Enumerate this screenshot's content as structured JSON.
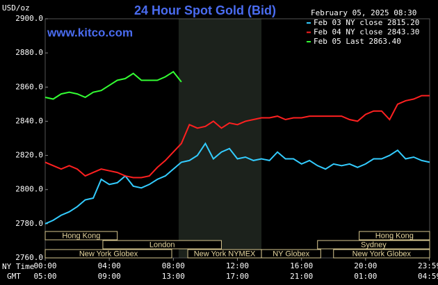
{
  "chart_data": {
    "type": "line",
    "title": "24 Hour Spot Gold (Bid)",
    "website": "www.kitco.com",
    "y_label": "USD/oz",
    "timestamp": "February 05, 2025 08:30",
    "x_axis_names": [
      "NY Time",
      "GMT"
    ],
    "x": [
      0,
      0.5,
      1,
      1.5,
      2,
      2.5,
      3,
      3.5,
      4,
      4.5,
      5,
      5.5,
      6,
      6.5,
      7,
      7.5,
      8,
      8.5,
      9,
      9.5,
      10,
      10.5,
      11,
      11.5,
      12,
      12.5,
      13,
      13.5,
      14,
      14.5,
      15,
      15.5,
      16,
      16.5,
      17,
      17.5,
      18,
      18.5,
      19,
      19.5,
      20,
      20.5,
      21,
      21.5,
      22,
      22.5,
      23,
      23.5,
      24
    ],
    "xlim": [
      0,
      24
    ],
    "xticks": [
      {
        "value": 0,
        "label": "00:00"
      },
      {
        "value": 4,
        "label": "04:00"
      },
      {
        "value": 8,
        "label": "08:00"
      },
      {
        "value": 12,
        "label": "12:00"
      },
      {
        "value": 16,
        "label": "16:00"
      },
      {
        "value": 20,
        "label": "20:00"
      },
      {
        "value": 23.98,
        "label": "23:59"
      }
    ],
    "gmt_tick_labels": [
      "05:00",
      "09:00",
      "13:00",
      "17:00",
      "21:00",
      "01:00",
      "04:59"
    ],
    "ylim": [
      2760,
      2900
    ],
    "yticks": [
      {
        "value": 2760,
        "label": "2760.0"
      },
      {
        "value": 2780,
        "label": "2780.0"
      },
      {
        "value": 2800,
        "label": "2800.0"
      },
      {
        "value": 2820,
        "label": "2820.0"
      },
      {
        "value": 2840,
        "label": "2840.0"
      },
      {
        "value": 2860,
        "label": "2860.0"
      },
      {
        "value": 2880,
        "label": "2880.0"
      },
      {
        "value": 2900,
        "label": "2900.0"
      }
    ],
    "sessions": [
      [
        "Hong Kong",
        "Hong Kong"
      ],
      [
        "London",
        "Sydney"
      ],
      [
        "New York Globex",
        "New York NYMEX",
        "NY Globex",
        "New York Globex"
      ]
    ],
    "series": [
      {
        "name": "Feb 03 NY close 2815.20",
        "color": "#33ccff",
        "values": [
          2780,
          2782,
          2785,
          2787,
          2790,
          2794,
          2795,
          2806,
          2803,
          2804,
          2808,
          2802,
          2801,
          2803,
          2806,
          2808,
          2812,
          2816,
          2817,
          2820,
          2827,
          2818,
          2822,
          2824,
          2818,
          2819,
          2817,
          2818,
          2817,
          2822,
          2818,
          2818,
          2815,
          2817,
          2814,
          2812,
          2815,
          2814,
          2815,
          2813,
          2815,
          2818,
          2818,
          2820,
          2823,
          2818,
          2819,
          2817,
          2816
        ]
      },
      {
        "name": "Feb 04 NY close 2843.30",
        "color": "#ff2020",
        "values": [
          2816,
          2814,
          2812,
          2814,
          2812,
          2808,
          2810,
          2812,
          2811,
          2810,
          2808,
          2807,
          2807,
          2808,
          2813,
          2817,
          2822,
          2827,
          2838,
          2836,
          2837,
          2840,
          2836,
          2839,
          2838,
          2840,
          2841,
          2842,
          2842,
          2843,
          2841,
          2842,
          2842,
          2843,
          2843,
          2843,
          2843,
          2843,
          2841,
          2840,
          2844,
          2846,
          2846,
          2841,
          2850,
          2852,
          2853,
          2855,
          2855
        ]
      },
      {
        "name": "Feb 05 Last 2863.40",
        "color": "#33ff33",
        "values": [
          2854,
          2853,
          2856,
          2857,
          2856,
          2854,
          2857,
          2858,
          2861,
          2864,
          2865,
          2868,
          2864,
          2864,
          2864,
          2866,
          2869,
          2863,
          null,
          null,
          null,
          null,
          null,
          null,
          null,
          null,
          null,
          null,
          null,
          null,
          null,
          null,
          null,
          null,
          null,
          null,
          null,
          null,
          null,
          null,
          null,
          null,
          null,
          null,
          null,
          null,
          null,
          null,
          null
        ]
      }
    ]
  }
}
